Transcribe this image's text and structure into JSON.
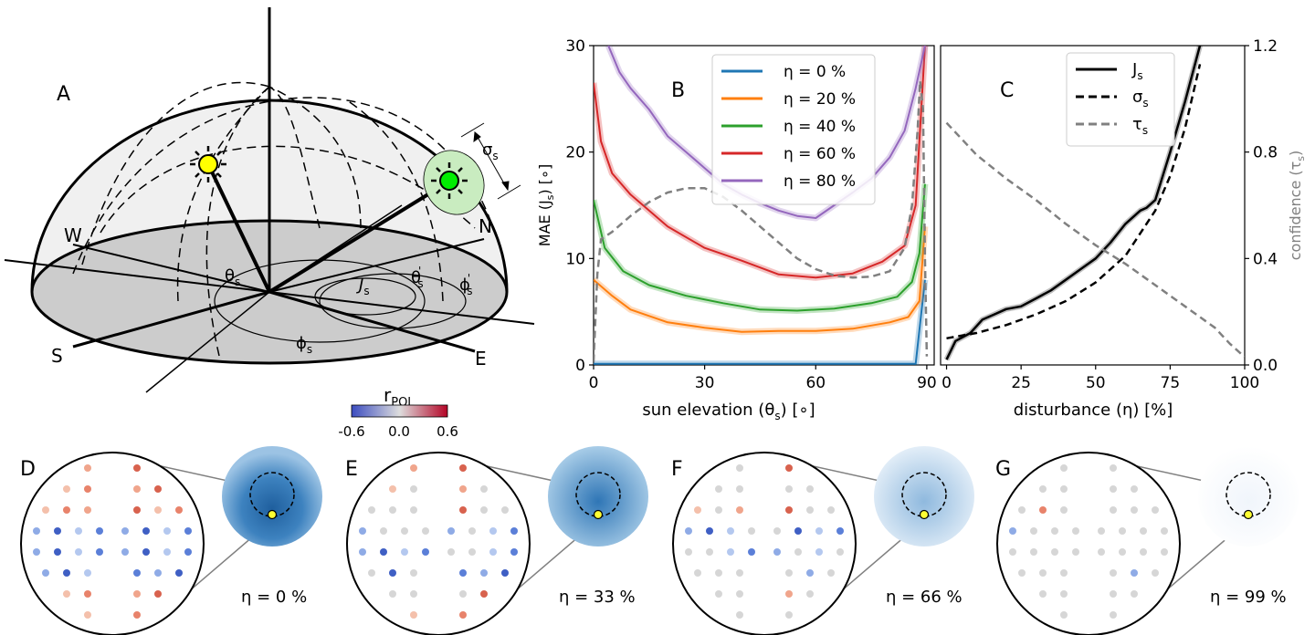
{
  "panels": {
    "A": "A",
    "B": "B",
    "C": "C",
    "D": "D",
    "E": "E",
    "F": "F",
    "G": "G"
  },
  "compass": {
    "w": "W",
    "n": "N",
    "s": "S",
    "e": "E"
  },
  "geometry_labels": {
    "theta_s": "θ",
    "theta_s_sub": "s",
    "theta_s_prime": "θ",
    "theta_s_prime_sub": "s",
    "theta_s_prime_mark": "'",
    "phi_s": "ϕ",
    "phi_s_sub": "s",
    "phi_s_prime": "ϕ",
    "phi_s_prime_sub": "s",
    "phi_s_prime_mark": "'",
    "j_s": "J",
    "j_s_sub": "s",
    "sigma_s": "σ",
    "sigma_s_sub": "s"
  },
  "colorbar": {
    "label": "r",
    "label_sub": "POL",
    "ticks": [
      "-0.6",
      "0.0",
      "0.6"
    ],
    "colors": [
      "#3b4cc0",
      "#dddddd",
      "#b40426"
    ]
  },
  "sensor_captions": [
    "η = 0 %",
    "η = 33 %",
    "η = 66 %",
    "η = 99 %"
  ],
  "chart_data": [
    {
      "type": "line",
      "panel": "B",
      "xlabel_prefix": "sun elevation (θ",
      "xlabel_sub": "s",
      "xlabel_suffix": ") [∘]",
      "ylabel_prefix": "MAE (J",
      "ylabel_sub": "s",
      "ylabel_suffix": ") [∘]",
      "xlim": [
        0,
        92
      ],
      "ylim": [
        0,
        30
      ],
      "xticks": [
        "0",
        "30",
        "60",
        "90"
      ],
      "yticks": [
        "0",
        "10",
        "20",
        "30"
      ],
      "legend_placement": "top-right",
      "series": [
        {
          "name": "η =   0 %",
          "color": "#1f77b4",
          "x": [
            0,
            10,
            20,
            30,
            40,
            50,
            60,
            70,
            80,
            87,
            89.5
          ],
          "y": [
            0.1,
            0.1,
            0.1,
            0.1,
            0.1,
            0.1,
            0.1,
            0.1,
            0.1,
            0.1,
            8
          ]
        },
        {
          "name": "η = 20 %",
          "color": "#ff7f0e",
          "x": [
            0,
            5,
            10,
            20,
            30,
            40,
            50,
            60,
            70,
            80,
            85,
            88,
            89.5
          ],
          "y": [
            8,
            6.5,
            5.2,
            4.0,
            3.5,
            3.1,
            3.2,
            3.2,
            3.4,
            4.0,
            4.5,
            6,
            13
          ]
        },
        {
          "name": "η = 40 %",
          "color": "#2ca02c",
          "x": [
            0,
            3,
            8,
            15,
            25,
            35,
            45,
            55,
            65,
            75,
            82,
            86,
            88,
            89.5
          ],
          "y": [
            15.5,
            11,
            8.8,
            7.5,
            6.5,
            5.8,
            5.2,
            5.1,
            5.3,
            5.8,
            6.4,
            7.8,
            10.5,
            17
          ]
        },
        {
          "name": "η = 60 %",
          "color": "#d62728",
          "x": [
            0,
            2,
            5,
            10,
            15,
            20,
            30,
            40,
            50,
            60,
            70,
            78,
            84,
            87,
            89.5
          ],
          "y": [
            26.5,
            21,
            18,
            16,
            14.5,
            13,
            11,
            9.8,
            8.5,
            8.2,
            8.6,
            9.7,
            11.2,
            15,
            30
          ]
        },
        {
          "name": "η = 80 %",
          "color": "#9467bd",
          "x": [
            4,
            7,
            10,
            15,
            20,
            25,
            30,
            35,
            40,
            45,
            50,
            55,
            60,
            65,
            70,
            75,
            80,
            84,
            87,
            89.5
          ],
          "y": [
            30,
            27.5,
            26,
            24,
            21.5,
            20,
            18.5,
            17,
            16,
            15.2,
            14.5,
            14,
            13.8,
            15,
            16.2,
            17.5,
            19.5,
            22,
            26,
            30
          ]
        },
        {
          "name": "",
          "color": "#808080",
          "dashed": true,
          "x": [
            0,
            1,
            2,
            5,
            10,
            15,
            20,
            25,
            30,
            35,
            40,
            45,
            50,
            55,
            60,
            65,
            70,
            75,
            80,
            84,
            86,
            87.5,
            88.2,
            89,
            89.5,
            90
          ],
          "y": [
            0.3,
            8.5,
            11.8,
            12.5,
            14,
            15.3,
            16.2,
            16.6,
            16.6,
            15.8,
            14.5,
            13,
            11.5,
            10,
            9,
            8.4,
            8.2,
            8.3,
            8.8,
            11,
            15,
            22,
            26.7,
            24,
            10,
            0.8
          ]
        }
      ]
    },
    {
      "type": "line",
      "panel": "C",
      "xlabel": "disturbance (η) [%]",
      "ylabel_right_prefix": "confidence (τ",
      "ylabel_right_sub": "s",
      "ylabel_right_suffix": ")",
      "xlim": [
        -2,
        100
      ],
      "ylim_right": [
        0,
        1.2
      ],
      "xticks": [
        "0",
        "25",
        "50",
        "75",
        "100"
      ],
      "yticks_right": [
        "0.0",
        "0.4",
        "0.8",
        "1.2"
      ],
      "legend_placement": "top-right",
      "series": [
        {
          "name": "J",
          "name_sub": "s",
          "color": "#000000",
          "style": "solid",
          "x": [
            0,
            3,
            8,
            12,
            16,
            20,
            25,
            30,
            35,
            40,
            45,
            50,
            55,
            60,
            65,
            67,
            70,
            75,
            80,
            85
          ],
          "y": [
            0.02,
            0.09,
            0.12,
            0.17,
            0.19,
            0.21,
            0.22,
            0.25,
            0.28,
            0.32,
            0.36,
            0.4,
            0.46,
            0.53,
            0.58,
            0.59,
            0.62,
            0.8,
            0.99,
            1.2
          ]
        },
        {
          "name": "σ",
          "name_sub": "s",
          "color": "#000000",
          "style": "dashed",
          "x": [
            0,
            10,
            20,
            30,
            40,
            50,
            60,
            70,
            75,
            80,
            85
          ],
          "y": [
            0.1,
            0.12,
            0.15,
            0.19,
            0.24,
            0.31,
            0.41,
            0.58,
            0.71,
            0.89,
            1.13
          ]
        },
        {
          "name": "τ",
          "name_sub": "s",
          "color": "#808080",
          "style": "dashed",
          "x": [
            0,
            5,
            10,
            20,
            30,
            40,
            50,
            60,
            70,
            80,
            90,
            95,
            100
          ],
          "y": [
            0.91,
            0.85,
            0.79,
            0.7,
            0.62,
            0.53,
            0.45,
            0.38,
            0.3,
            0.22,
            0.14,
            0.08,
            0.03
          ]
        }
      ]
    }
  ]
}
